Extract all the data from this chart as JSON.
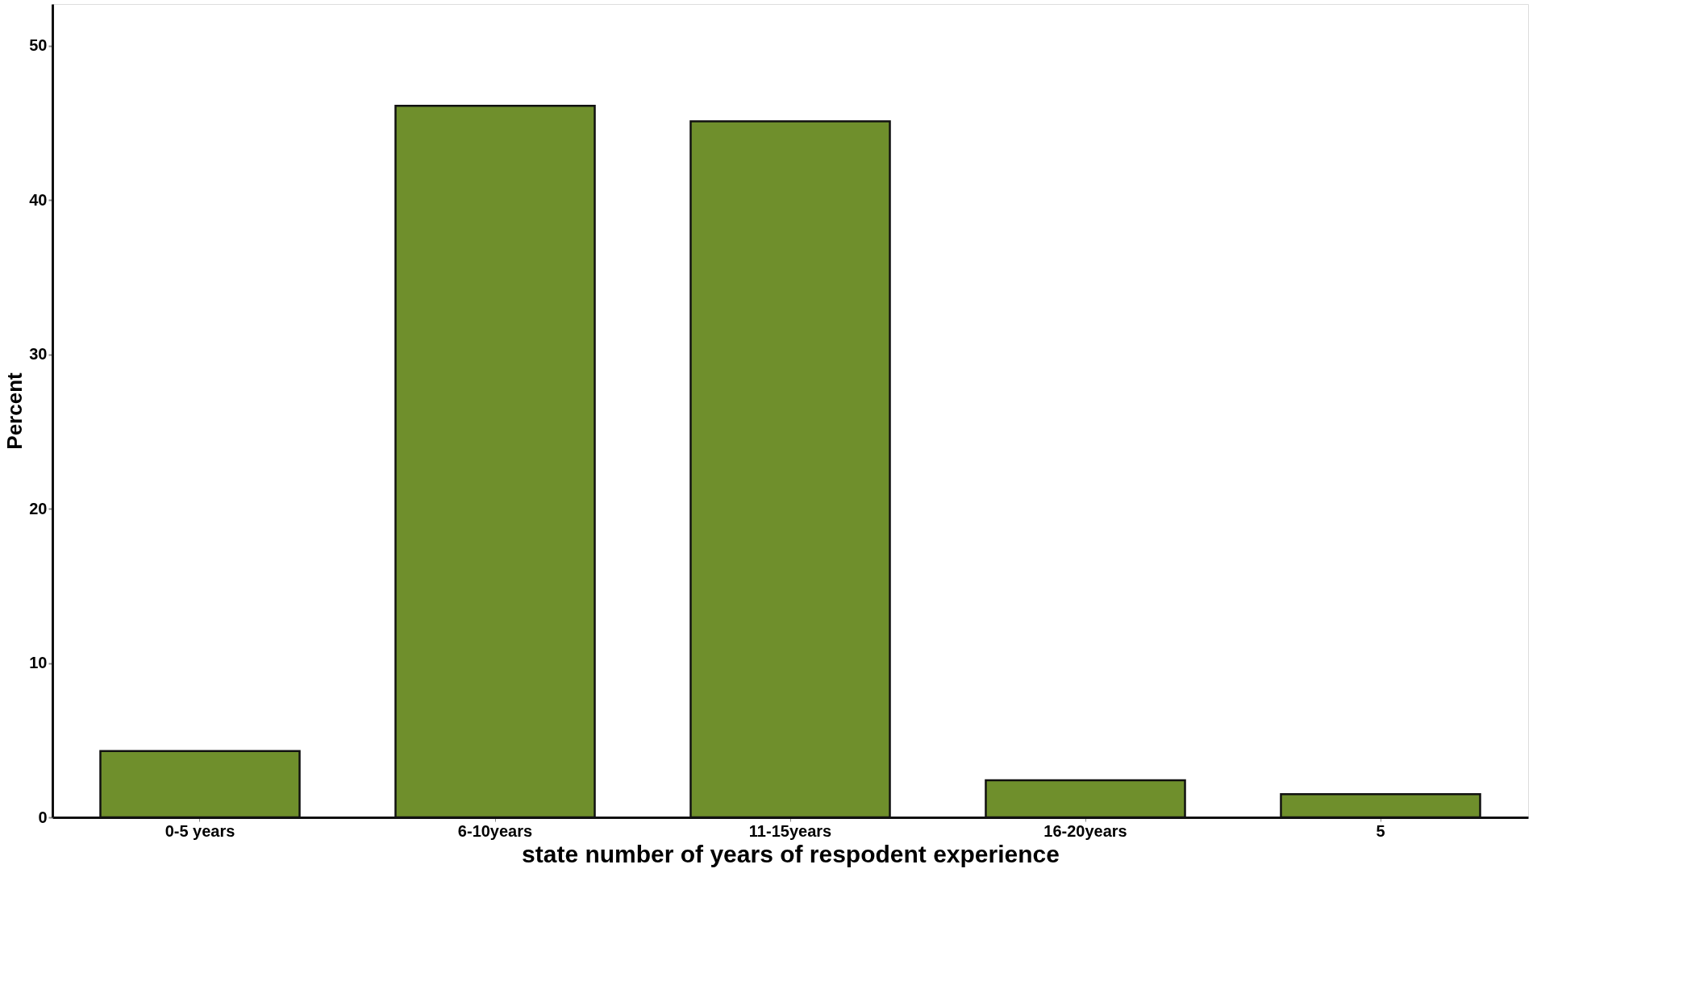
{
  "chart_data": {
    "type": "bar",
    "xlabel": "state number of years of respodent experience",
    "ylabel": "Percent",
    "categories": [
      "0-5 years",
      "6-10years",
      "11-15years",
      "16-20years",
      "5"
    ],
    "values": [
      4.3,
      46.1,
      45.1,
      2.4,
      1.5
    ],
    "color": "#6f8f2c",
    "ylim": [
      0,
      52.7
    ],
    "yticks": [
      0,
      10,
      20,
      30,
      40,
      50
    ],
    "grid": false
  }
}
